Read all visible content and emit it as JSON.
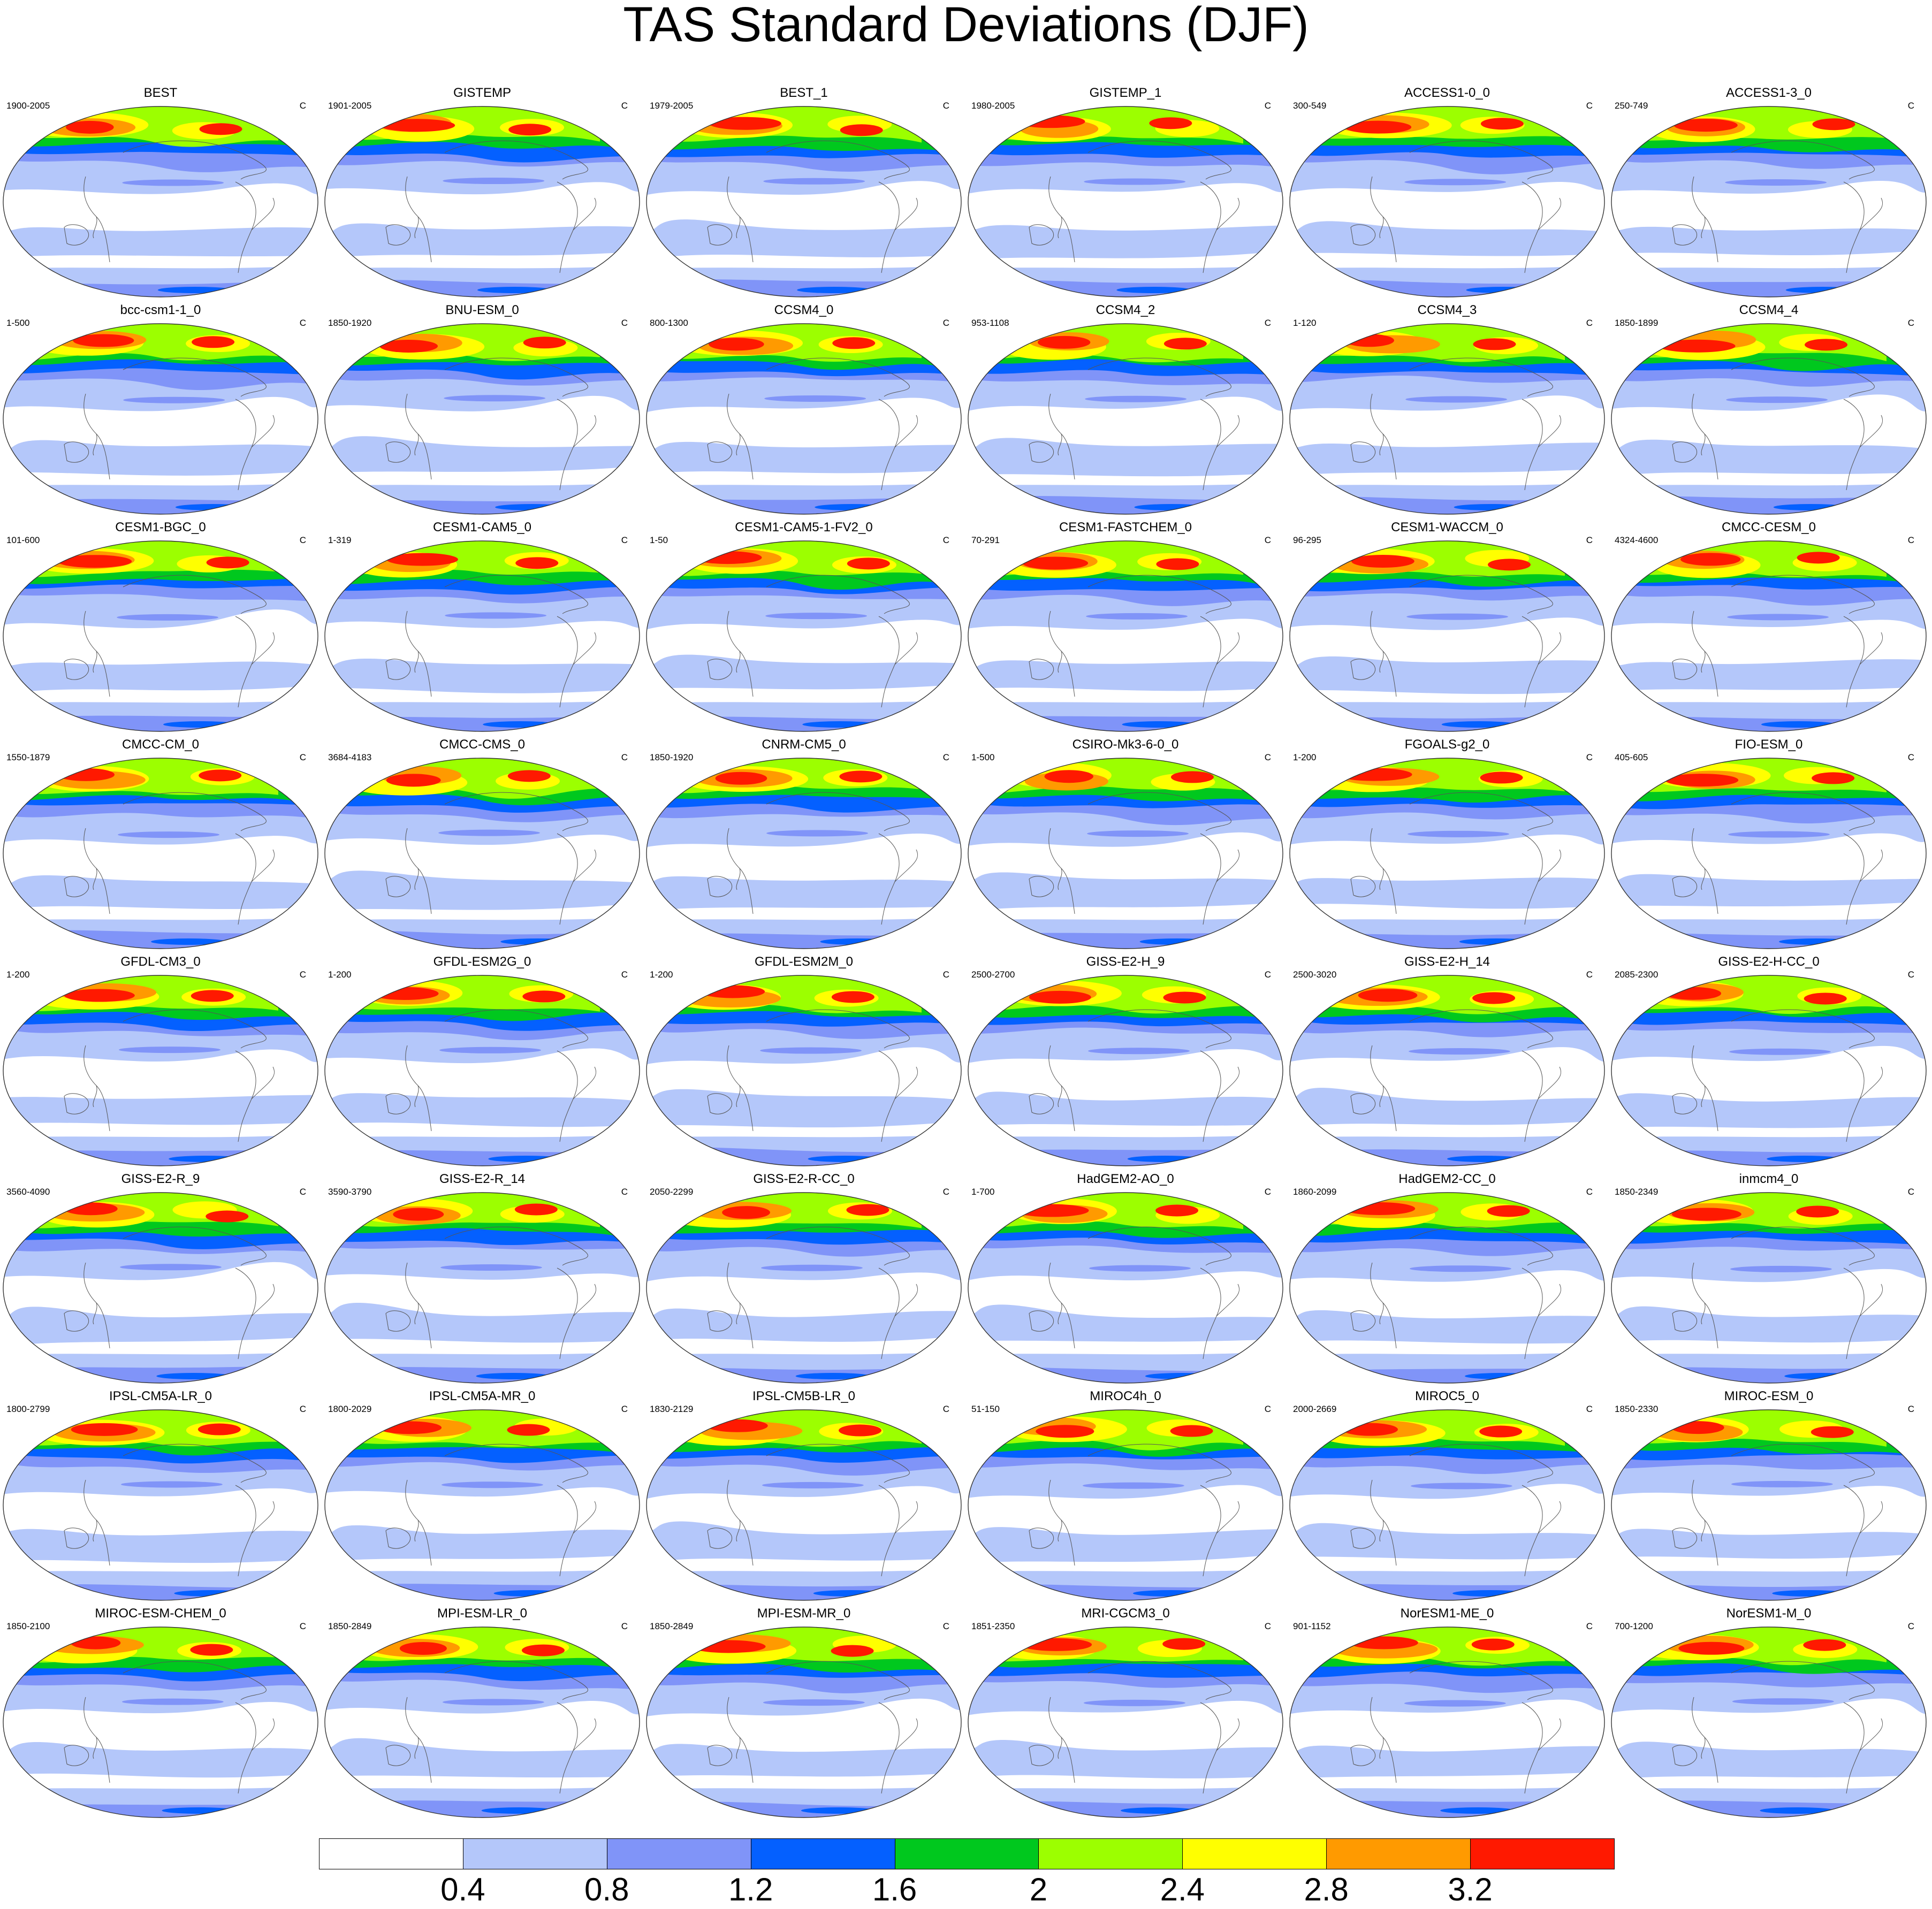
{
  "figure": {
    "title": "TAS Standard Deviations (DJF)",
    "unit": "C"
  },
  "legend": {
    "type": "colorbar",
    "labels": [
      "0.4",
      "0.8",
      "1.2",
      "1.6",
      "2",
      "2.4",
      "2.8",
      "3.2"
    ],
    "colors": [
      "#ffffff",
      "#b4c7fa",
      "#8094f8",
      "#0460ff",
      "#00c81e",
      "#9cff00",
      "#ffff00",
      "#ff9a00",
      "#ff1900"
    ]
  },
  "panels": [
    {
      "name": "BEST",
      "period": "1900-2005",
      "unit": "C"
    },
    {
      "name": "GISTEMP",
      "period": "1901-2005",
      "unit": "C"
    },
    {
      "name": "BEST_1",
      "period": "1979-2005",
      "unit": "C"
    },
    {
      "name": "GISTEMP_1",
      "period": "1980-2005",
      "unit": "C"
    },
    {
      "name": "ACCESS1-0_0",
      "period": "300-549",
      "unit": "C"
    },
    {
      "name": "ACCESS1-3_0",
      "period": "250-749",
      "unit": "C"
    },
    {
      "name": "bcc-csm1-1_0",
      "period": "1-500",
      "unit": "C"
    },
    {
      "name": "BNU-ESM_0",
      "period": "1850-1920",
      "unit": "C"
    },
    {
      "name": "CCSM4_0",
      "period": "800-1300",
      "unit": "C"
    },
    {
      "name": "CCSM4_2",
      "period": "953-1108",
      "unit": "C"
    },
    {
      "name": "CCSM4_3",
      "period": "1-120",
      "unit": "C"
    },
    {
      "name": "CCSM4_4",
      "period": "1850-1899",
      "unit": "C"
    },
    {
      "name": "CESM1-BGC_0",
      "period": "101-600",
      "unit": "C"
    },
    {
      "name": "CESM1-CAM5_0",
      "period": "1-319",
      "unit": "C"
    },
    {
      "name": "CESM1-CAM5-1-FV2_0",
      "period": "1-50",
      "unit": "C"
    },
    {
      "name": "CESM1-FASTCHEM_0",
      "period": "70-291",
      "unit": "C"
    },
    {
      "name": "CESM1-WACCM_0",
      "period": "96-295",
      "unit": "C"
    },
    {
      "name": "CMCC-CESM_0",
      "period": "4324-4600",
      "unit": "C"
    },
    {
      "name": "CMCC-CM_0",
      "period": "1550-1879",
      "unit": "C"
    },
    {
      "name": "CMCC-CMS_0",
      "period": "3684-4183",
      "unit": "C"
    },
    {
      "name": "CNRM-CM5_0",
      "period": "1850-1920",
      "unit": "C"
    },
    {
      "name": "CSIRO-Mk3-6-0_0",
      "period": "1-500",
      "unit": "C"
    },
    {
      "name": "FGOALS-g2_0",
      "period": "1-200",
      "unit": "C"
    },
    {
      "name": "FIO-ESM_0",
      "period": "405-605",
      "unit": "C"
    },
    {
      "name": "GFDL-CM3_0",
      "period": "1-200",
      "unit": "C"
    },
    {
      "name": "GFDL-ESM2G_0",
      "period": "1-200",
      "unit": "C"
    },
    {
      "name": "GFDL-ESM2M_0",
      "period": "1-200",
      "unit": "C"
    },
    {
      "name": "GISS-E2-H_9",
      "period": "2500-2700",
      "unit": "C"
    },
    {
      "name": "GISS-E2-H_14",
      "period": "2500-3020",
      "unit": "C"
    },
    {
      "name": "GISS-E2-H-CC_0",
      "period": "2085-2300",
      "unit": "C"
    },
    {
      "name": "GISS-E2-R_9",
      "period": "3560-4090",
      "unit": "C"
    },
    {
      "name": "GISS-E2-R_14",
      "period": "3590-3790",
      "unit": "C"
    },
    {
      "name": "GISS-E2-R-CC_0",
      "period": "2050-2299",
      "unit": "C"
    },
    {
      "name": "HadGEM2-AO_0",
      "period": "1-700",
      "unit": "C"
    },
    {
      "name": "HadGEM2-CC_0",
      "period": "1860-2099",
      "unit": "C"
    },
    {
      "name": "inmcm4_0",
      "period": "1850-2349",
      "unit": "C"
    },
    {
      "name": "IPSL-CM5A-LR_0",
      "period": "1800-2799",
      "unit": "C"
    },
    {
      "name": "IPSL-CM5A-MR_0",
      "period": "1800-2029",
      "unit": "C"
    },
    {
      "name": "IPSL-CM5B-LR_0",
      "period": "1830-2129",
      "unit": "C"
    },
    {
      "name": "MIROC4h_0",
      "period": "51-150",
      "unit": "C"
    },
    {
      "name": "MIROC5_0",
      "period": "2000-2669",
      "unit": "C"
    },
    {
      "name": "MIROC-ESM_0",
      "period": "1850-2330",
      "unit": "C"
    },
    {
      "name": "MIROC-ESM-CHEM_0",
      "period": "1850-2100",
      "unit": "C"
    },
    {
      "name": "MPI-ESM-LR_0",
      "period": "1850-2849",
      "unit": "C"
    },
    {
      "name": "MPI-ESM-MR_0",
      "period": "1850-2849",
      "unit": "C"
    },
    {
      "name": "MRI-CGCM3_0",
      "period": "1851-2350",
      "unit": "C"
    },
    {
      "name": "NorESM1-ME_0",
      "period": "901-1152",
      "unit": "C"
    },
    {
      "name": "NorESM1-M_0",
      "period": "700-1200",
      "unit": "C"
    }
  ]
}
